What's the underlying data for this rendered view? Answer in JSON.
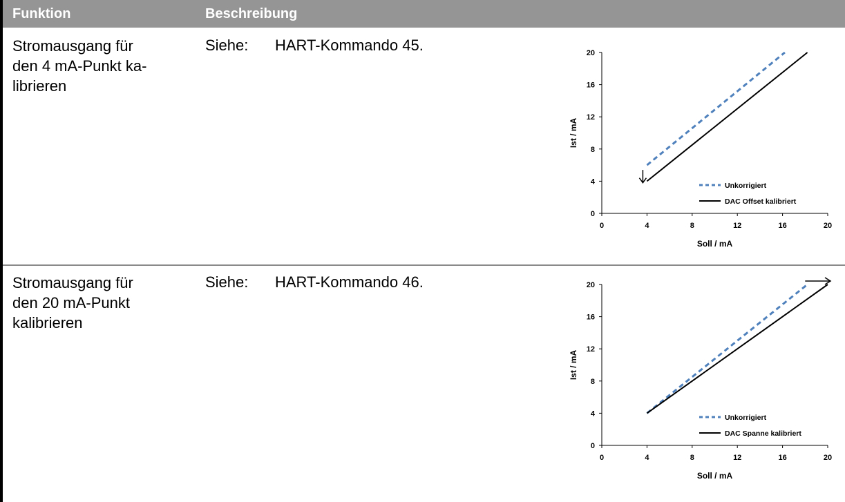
{
  "table": {
    "headers": {
      "function": "Funktion",
      "description": "Beschreibung"
    },
    "rows": [
      {
        "function": "Stromausgang für\nden 4 mA-Punkt ka-\nlibrieren",
        "see_label": "Siehe:",
        "command": "HART-Kommando 45."
      },
      {
        "function": "Stromausgang für\nden 20 mA-Punkt\nkalibrieren",
        "see_label": "Siehe:",
        "command": "HART-Kommando 46."
      }
    ]
  },
  "colors": {
    "header_bg": "#959595",
    "uncorrected": "#4f81bd",
    "calibrated": "#000000"
  },
  "chart_data": [
    {
      "type": "line",
      "xlabel": "Soll / mA",
      "ylabel": "Ist / mA",
      "xlim": [
        0,
        20
      ],
      "ylim": [
        0,
        20
      ],
      "xticks": [
        0,
        4,
        8,
        12,
        16,
        20
      ],
      "yticks": [
        0,
        4,
        8,
        12,
        16,
        20
      ],
      "legend_position": "bottom-right",
      "annotation_arrow": "down at x=4",
      "series": [
        {
          "name": "Unkorrigiert",
          "style": "dashed",
          "x": [
            4,
            16.2
          ],
          "y": [
            6,
            20
          ]
        },
        {
          "name": "DAC Offset kalibriert",
          "style": "solid",
          "x": [
            4,
            18.2
          ],
          "y": [
            4,
            20
          ]
        }
      ]
    },
    {
      "type": "line",
      "xlabel": "Soll / mA",
      "ylabel": "Ist / mA",
      "xlim": [
        0,
        20
      ],
      "ylim": [
        0,
        20
      ],
      "xticks": [
        0,
        4,
        8,
        12,
        16,
        20
      ],
      "yticks": [
        0,
        4,
        8,
        12,
        16,
        20
      ],
      "legend_position": "bottom-right",
      "annotation_arrow": "right at y=20",
      "series": [
        {
          "name": "Unkorrigiert",
          "style": "dashed",
          "x": [
            4,
            18.2
          ],
          "y": [
            4,
            20
          ]
        },
        {
          "name": "DAC Spanne kalibriert",
          "style": "solid",
          "x": [
            4,
            20
          ],
          "y": [
            4,
            20
          ]
        }
      ]
    }
  ]
}
